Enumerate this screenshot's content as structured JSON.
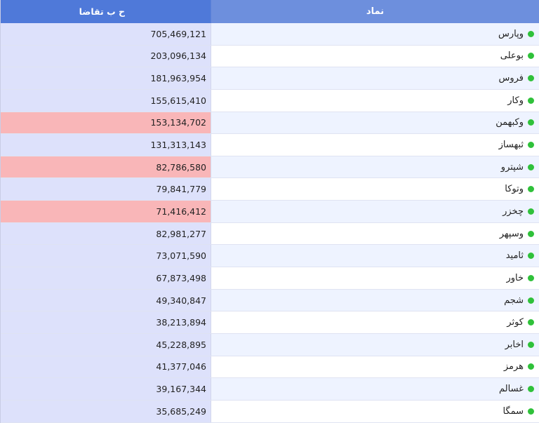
{
  "header": {
    "col_left": "ح ب تقاضا",
    "col_right": "نماد"
  },
  "colors": {
    "header_bg": "#6d8fdd",
    "cell_normal": "#dde1fb",
    "cell_highlight": "#f9b6b8",
    "status_dot": "#2fc13a"
  },
  "rows": [
    {
      "symbol": "وپارس",
      "value": "705,469,121",
      "highlight": false
    },
    {
      "symbol": "بوعلی",
      "value": "203,096,134",
      "highlight": false
    },
    {
      "symbol": "فروس",
      "value": "181,963,954",
      "highlight": false
    },
    {
      "symbol": "وکار",
      "value": "155,615,410",
      "highlight": false
    },
    {
      "symbol": "وکبهمن",
      "value": "153,134,702",
      "highlight": true
    },
    {
      "symbol": "ثبهساز",
      "value": "131,313,143",
      "highlight": false
    },
    {
      "symbol": "شپترو",
      "value": "82,786,580",
      "highlight": true
    },
    {
      "symbol": "وتوکا",
      "value": "79,841,779",
      "highlight": false
    },
    {
      "symbol": "چخزر",
      "value": "71,416,412",
      "highlight": true
    },
    {
      "symbol": "وسپهر",
      "value": "82,981,277",
      "highlight": false
    },
    {
      "symbol": "ثامید",
      "value": "73,071,590",
      "highlight": false
    },
    {
      "symbol": "خاور",
      "value": "67,873,498",
      "highlight": false
    },
    {
      "symbol": "شجم",
      "value": "49,340,847",
      "highlight": false
    },
    {
      "symbol": "کوثر",
      "value": "38,213,894",
      "highlight": false
    },
    {
      "symbol": "اخابر",
      "value": "45,228,895",
      "highlight": false
    },
    {
      "symbol": "هرمز",
      "value": "41,377,046",
      "highlight": false
    },
    {
      "symbol": "غسالم",
      "value": "39,167,344",
      "highlight": false
    },
    {
      "symbol": "سمگا",
      "value": "35,685,249",
      "highlight": false
    }
  ]
}
